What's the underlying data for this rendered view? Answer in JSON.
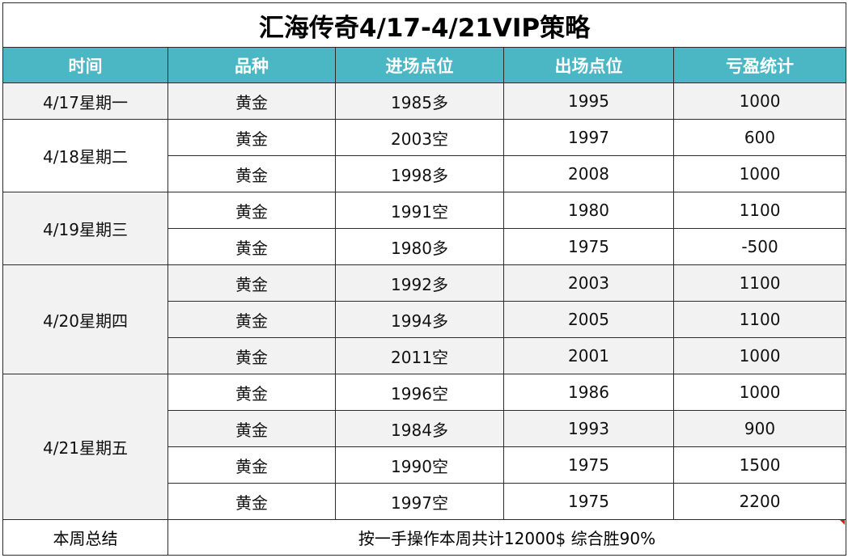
{
  "title": "汇海传奇4/17-4/21VIP策略",
  "headers": [
    "时间",
    "品种",
    "进场点位",
    "出场点位",
    "亏盈统计"
  ],
  "days": [
    {
      "label": "4/17星期一",
      "rows": [
        {
          "product": "黄金",
          "entry": "1985多",
          "exit": "1995",
          "pnl": "1000"
        }
      ]
    },
    {
      "label": "4/18星期二",
      "rows": [
        {
          "product": "黄金",
          "entry": "2003空",
          "exit": "1997",
          "pnl": "600"
        },
        {
          "product": "黄金",
          "entry": "1998多",
          "exit": "2008",
          "pnl": "1000"
        }
      ]
    },
    {
      "label": "4/19星期三",
      "rows": [
        {
          "product": "黄金",
          "entry": "1991空",
          "exit": "1980",
          "pnl": "1100"
        },
        {
          "product": "黄金",
          "entry": "1980多",
          "exit": "1975",
          "pnl": "-500"
        }
      ]
    },
    {
      "label": "4/20星期四",
      "rows": [
        {
          "product": "黄金",
          "entry": "1992多",
          "exit": "2003",
          "pnl": "1100"
        },
        {
          "product": "黄金",
          "entry": "1994多",
          "exit": "2005",
          "pnl": "1100"
        },
        {
          "product": "黄金",
          "entry": "2011空",
          "exit": "2001",
          "pnl": "1000"
        }
      ]
    },
    {
      "label": "4/21星期五",
      "rows": [
        {
          "product": "黄金",
          "entry": "1996空",
          "exit": "1986",
          "pnl": "1000"
        },
        {
          "product": "黄金",
          "entry": "1984多",
          "exit": "1993",
          "pnl": "900"
        },
        {
          "product": "黄金",
          "entry": "1990空",
          "exit": "1975",
          "pnl": "1500"
        },
        {
          "product": "黄金",
          "entry": "1997空",
          "exit": "1975",
          "pnl": "2200"
        }
      ]
    }
  ],
  "summary": {
    "label": "本周总结",
    "text": "按一手操作本周共计12000$ 综合胜90%"
  },
  "colors": {
    "header_bg": "#4bb6c4",
    "header_text": "#ffffff",
    "shade": "#f2f2f2",
    "border": "#2b2b2b",
    "corner_marker": "#e01818"
  }
}
